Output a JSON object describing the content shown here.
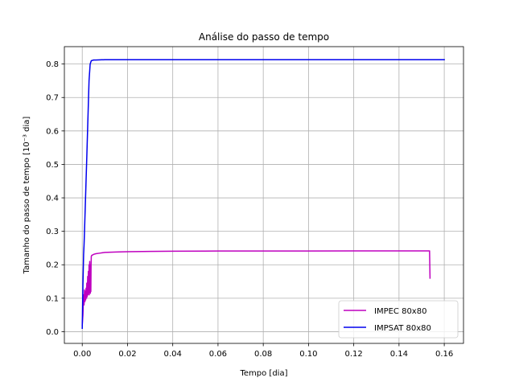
{
  "chart_data": {
    "type": "line",
    "title": "Análise do passo de tempo",
    "xlabel": "Tempo [dia]",
    "ylabel": "Tamanho do passo de tempo [10⁻³ dia]",
    "xlim": [
      -0.0079,
      0.1685
    ],
    "ylim": [
      -0.035,
      0.852
    ],
    "xticks": [
      0.0,
      0.02,
      0.04,
      0.06,
      0.08,
      0.1,
      0.12,
      0.14,
      0.16
    ],
    "xtick_labels": [
      "0.00",
      "0.02",
      "0.04",
      "0.06",
      "0.08",
      "0.10",
      "0.12",
      "0.14",
      "0.16"
    ],
    "yticks": [
      0.0,
      0.1,
      0.2,
      0.3,
      0.4,
      0.5,
      0.6,
      0.7,
      0.8
    ],
    "ytick_labels": [
      "0.0",
      "0.1",
      "0.2",
      "0.3",
      "0.4",
      "0.5",
      "0.6",
      "0.7",
      "0.8"
    ],
    "grid": true,
    "legend_position": "lower-right",
    "series": [
      {
        "name": "IMPEC 80x80",
        "color": "#bf00bf",
        "x": [
          0.0,
          0.0003,
          0.0006,
          0.0008,
          0.001,
          0.0012,
          0.0014,
          0.0015,
          0.0017,
          0.0019,
          0.002,
          0.0022,
          0.0024,
          0.0025,
          0.0027,
          0.0029,
          0.003,
          0.0031,
          0.0033,
          0.0034,
          0.0035,
          0.0036,
          0.0037,
          0.0038,
          0.0039,
          0.004,
          0.0042,
          0.0045,
          0.005,
          0.006,
          0.008,
          0.01,
          0.015,
          0.02,
          0.03,
          0.04,
          0.06,
          0.08,
          0.1,
          0.12,
          0.14,
          0.1535,
          0.1537
        ],
        "y": [
          0.02,
          0.05,
          0.11,
          0.08,
          0.125,
          0.09,
          0.12,
          0.095,
          0.13,
          0.1,
          0.145,
          0.105,
          0.165,
          0.11,
          0.18,
          0.115,
          0.2,
          0.11,
          0.21,
          0.12,
          0.2,
          0.115,
          0.19,
          0.12,
          0.2,
          0.225,
          0.228,
          0.229,
          0.231,
          0.233,
          0.235,
          0.237,
          0.238,
          0.239,
          0.24,
          0.2405,
          0.241,
          0.241,
          0.2412,
          0.2413,
          0.2415,
          0.2415,
          0.16
        ]
      },
      {
        "name": "IMPSAT 80x80",
        "color": "#0000ee",
        "x": [
          0.0,
          0.0003,
          0.0006,
          0.0008,
          0.001,
          0.002,
          0.003,
          0.0035,
          0.004,
          0.0045,
          0.005,
          0.006,
          0.01,
          0.02,
          0.05,
          0.1,
          0.16
        ],
        "y": [
          0.01,
          0.14,
          0.23,
          0.26,
          0.3,
          0.52,
          0.75,
          0.8,
          0.81,
          0.811,
          0.812,
          0.812,
          0.813,
          0.813,
          0.813,
          0.813,
          0.813
        ]
      }
    ]
  }
}
